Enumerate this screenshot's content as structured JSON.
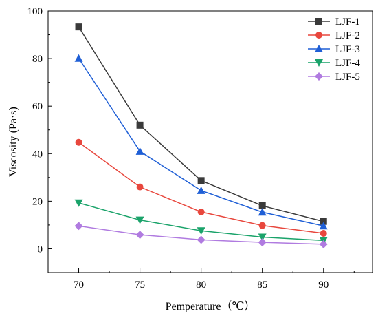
{
  "chart_data": {
    "type": "line",
    "title": "",
    "xlabel": "Pemperature（℃）",
    "ylabel": "Viscosity (Pa·s)",
    "x": [
      70,
      75,
      80,
      85,
      90
    ],
    "xticks": [
      "70",
      "75",
      "80",
      "85",
      "90"
    ],
    "xlim": [
      67.5,
      94
    ],
    "ylim": [
      -10,
      100
    ],
    "yticks": [
      "0",
      "20",
      "40",
      "60",
      "80",
      "100"
    ],
    "legend_position": "top-right",
    "grid": false,
    "series": [
      {
        "name": "LJF-1",
        "color": "#3a3a3a",
        "marker": "square",
        "values": [
          93.3,
          52.0,
          28.7,
          18.1,
          11.5
        ]
      },
      {
        "name": "LJF-2",
        "color": "#e8473d",
        "marker": "circle",
        "values": [
          44.8,
          26.0,
          15.5,
          9.8,
          6.5
        ]
      },
      {
        "name": "LJF-3",
        "color": "#1f5fd6",
        "marker": "triangle-up",
        "values": [
          80.1,
          41.0,
          24.5,
          15.4,
          9.6
        ]
      },
      {
        "name": "LJF-4",
        "color": "#1aa36a",
        "marker": "triangle-down",
        "values": [
          19.3,
          12.1,
          7.6,
          4.9,
          3.5
        ]
      },
      {
        "name": "LJF-5",
        "color": "#b07be0",
        "marker": "diamond",
        "values": [
          9.6,
          5.9,
          3.8,
          2.7,
          1.9
        ]
      }
    ]
  }
}
